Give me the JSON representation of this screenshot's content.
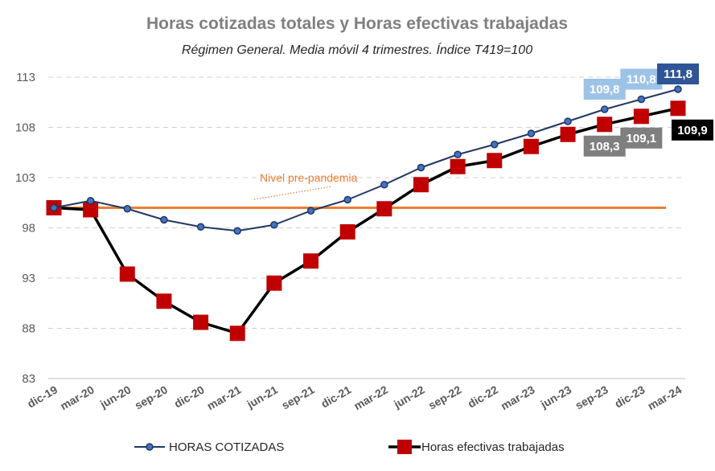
{
  "chart_data": {
    "type": "line",
    "title": "Horas cotizadas totales y Horas efectivas trabajadas",
    "subtitle": "Régimen General. Media móvil 4 trimestres. Índice T419=100",
    "categories": [
      "dic-19",
      "mar-20",
      "jun-20",
      "sep-20",
      "dic-20",
      "mar-21",
      "jun-21",
      "sep-21",
      "dic-21",
      "mar-22",
      "jun-22",
      "sep-22",
      "dic-22",
      "mar-23",
      "jun-23",
      "sep-23",
      "dic-23",
      "mar-24"
    ],
    "yticks": [
      83,
      88,
      93,
      98,
      103,
      108,
      113
    ],
    "ylim": [
      83,
      113
    ],
    "grid": true,
    "legend_position": "bottom",
    "series": [
      {
        "name": "HORAS COTIZADAS",
        "color": "#203864",
        "marker_fill": "#4472c4",
        "marker": "circle",
        "values": [
          100.0,
          100.7,
          99.9,
          98.8,
          98.1,
          97.7,
          98.3,
          99.7,
          100.8,
          102.3,
          104.0,
          105.3,
          106.3,
          107.4,
          108.6,
          109.8,
          110.8,
          111.8
        ]
      },
      {
        "name": "Horas efectivas trabajadas",
        "color": "#000000",
        "marker_fill": "#c00000",
        "marker": "square",
        "values": [
          100.0,
          99.8,
          93.4,
          90.7,
          88.6,
          87.5,
          92.5,
          94.7,
          97.6,
          99.9,
          102.3,
          104.1,
          104.7,
          106.1,
          107.3,
          108.3,
          109.1,
          109.9
        ]
      }
    ],
    "reference_line": {
      "value": 100,
      "color": "#ed7d31",
      "label": "Nivel pre-pandemia"
    },
    "data_labels": [
      {
        "text": "109,8",
        "series": 0,
        "index": 15,
        "bg": "#9dc3e6",
        "fg": "#ffffff"
      },
      {
        "text": "110,8",
        "series": 0,
        "index": 16,
        "bg": "#9dc3e6",
        "fg": "#ffffff"
      },
      {
        "text": "111,8",
        "series": 0,
        "index": 17,
        "bg": "#2f5597",
        "fg": "#ffffff"
      },
      {
        "text": "108,3",
        "series": 1,
        "index": 15,
        "bg": "#7f7f7f",
        "fg": "#ffffff"
      },
      {
        "text": "109,1",
        "series": 1,
        "index": 16,
        "bg": "#7f7f7f",
        "fg": "#ffffff"
      },
      {
        "text": "109,9",
        "series": 1,
        "index": 17,
        "bg": "#000000",
        "fg": "#ffffff"
      }
    ]
  }
}
